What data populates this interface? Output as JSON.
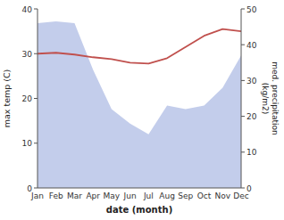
{
  "chart_data": {
    "type": "line",
    "categories": [
      "Jan",
      "Feb",
      "Mar",
      "Apr",
      "May",
      "Jun",
      "Jul",
      "Aug",
      "Sep",
      "Oct",
      "Nov",
      "Dec"
    ],
    "xlabel": "date (month)",
    "ylabel": "max temp (C)",
    "y2label": "med. precipitation\n(kg/m2)",
    "series": [
      {
        "type": "area",
        "axis": "y2",
        "color": "#b8c4e8",
        "values": [
          46.0,
          46.5,
          46.0,
          33.0,
          22.0,
          18.0,
          15.0,
          23.0,
          22.0,
          23.0,
          28.0,
          37.0
        ]
      },
      {
        "type": "line",
        "color": "#c0504d",
        "values": [
          30.0,
          30.2,
          29.8,
          29.2,
          28.8,
          28.0,
          27.8,
          29.0,
          31.5,
          34.0,
          35.5,
          35.0
        ]
      }
    ],
    "ylim": [
      0,
      40
    ],
    "yticks": [
      0,
      10,
      20,
      30,
      40
    ],
    "y2lim": [
      0,
      50
    ],
    "y2ticks": [
      0,
      10,
      20,
      30,
      40,
      50
    ]
  }
}
